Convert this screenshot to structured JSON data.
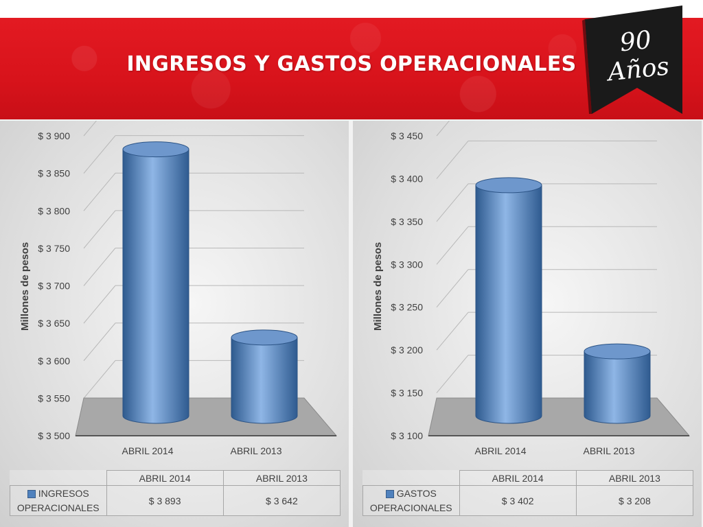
{
  "header": {
    "title": "INGRESOS Y GASTOS OPERACIONALES",
    "badge": "90 Años"
  },
  "colors": {
    "banner_red": "#d8131b",
    "bar_blue": "#4f81bd",
    "ribbon_black": "#1a1a1a"
  },
  "chart_data": [
    {
      "type": "bar",
      "ylabel": "Millones de pesos",
      "ylim": [
        3500,
        3900
      ],
      "ytick_step": 50,
      "yticks": [
        "$ 3 500",
        "$ 3 550",
        "$ 3 600",
        "$ 3 650",
        "$ 3 700",
        "$ 3 750",
        "$ 3 800",
        "$ 3 850",
        "$ 3 900"
      ],
      "categories": [
        "ABRIL 2014",
        "ABRIL 2013"
      ],
      "series": [
        {
          "name": "INGRESOS OPERACIONALES",
          "values": [
            3893,
            3642
          ]
        }
      ],
      "table": {
        "headers": [
          "ABRIL 2014",
          "ABRIL 2013"
        ],
        "row_label": "INGRESOS OPERACIONALES",
        "cells": [
          "$ 3 893",
          "$ 3 642"
        ]
      }
    },
    {
      "type": "bar",
      "ylabel": "Millones de pesos",
      "ylim": [
        3100,
        3450
      ],
      "ytick_step": 50,
      "yticks": [
        "$ 3 100",
        "$ 3 150",
        "$ 3 200",
        "$ 3 250",
        "$ 3 300",
        "$ 3 350",
        "$ 3 400",
        "$ 3 450"
      ],
      "categories": [
        "ABRIL 2014",
        "ABRIL 2013"
      ],
      "series": [
        {
          "name": "GASTOS OPERACIONALES",
          "values": [
            3402,
            3208
          ]
        }
      ],
      "table": {
        "headers": [
          "ABRIL 2014",
          "ABRIL 2013"
        ],
        "row_label": "GASTOS OPERACIONALES",
        "cells": [
          "$ 3 402",
          "$ 3 208"
        ]
      }
    }
  ]
}
